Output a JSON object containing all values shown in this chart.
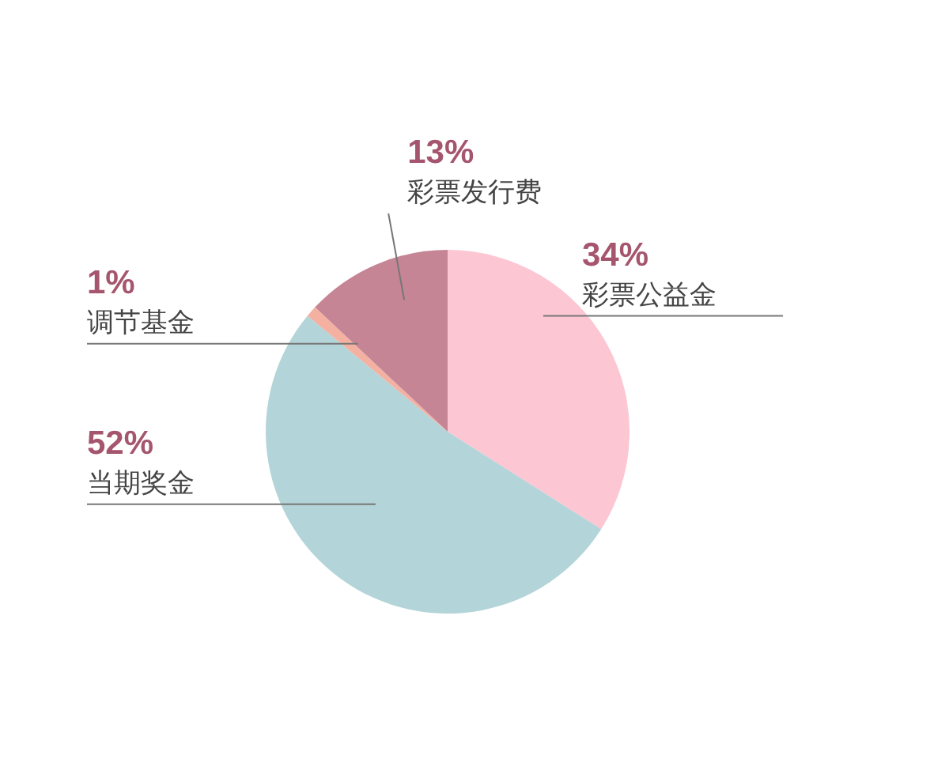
{
  "chart_data": {
    "type": "pie",
    "categories": [
      "彩票公益金",
      "当期奖金",
      "调节基金",
      "彩票发行费"
    ],
    "values": [
      34,
      52,
      1,
      13
    ],
    "colors": [
      "#fcc6d3",
      "#b3d4d8",
      "#f4b0a0",
      "#c58595"
    ],
    "value_labels": [
      "34%",
      "52%",
      "1%",
      "13%"
    ]
  }
}
